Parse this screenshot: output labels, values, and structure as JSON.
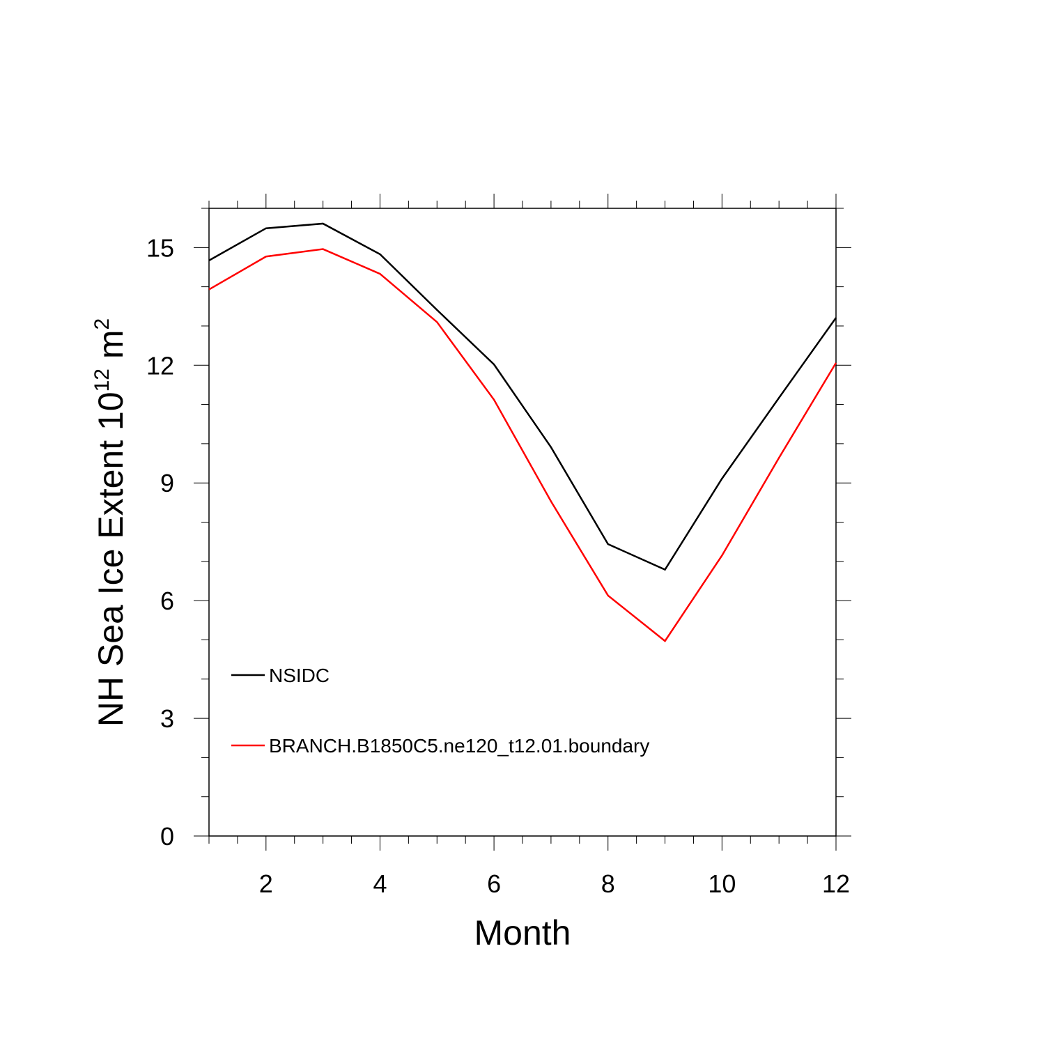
{
  "chart_data": {
    "type": "line",
    "title": "",
    "xlabel": "Month",
    "ylabel": {
      "main": "NH Sea Ice Extent 10",
      "superscript_1": "12",
      "unit": " m",
      "superscript_2": "2"
    },
    "xlim": [
      1,
      12
    ],
    "ylim": [
      0,
      16
    ],
    "xticks": [
      2,
      4,
      6,
      8,
      10,
      12
    ],
    "xtick_labels": [
      "2",
      "4",
      "6",
      "8",
      "10",
      "12"
    ],
    "yticks": [
      0,
      3,
      6,
      9,
      12,
      15
    ],
    "ytick_labels": [
      "0",
      "3",
      "6",
      "9",
      "12",
      "15"
    ],
    "grid": false,
    "legend_position": "lower-left",
    "x": [
      1,
      2,
      3,
      4,
      5,
      6,
      7,
      8,
      9,
      10,
      11,
      12
    ],
    "series": [
      {
        "name": "NSIDC",
        "color": "#000000",
        "values": [
          14.67,
          15.49,
          15.61,
          14.83,
          13.41,
          12.02,
          9.91,
          7.44,
          6.79,
          9.11,
          11.17,
          13.21
        ]
      },
      {
        "name": "BRANCH.B1850C5.ne120_t12.01.boundary",
        "color": "#ff0000",
        "values": [
          13.93,
          14.77,
          14.96,
          14.33,
          13.1,
          11.12,
          8.53,
          6.13,
          4.97,
          7.15,
          9.64,
          12.06
        ]
      }
    ]
  }
}
